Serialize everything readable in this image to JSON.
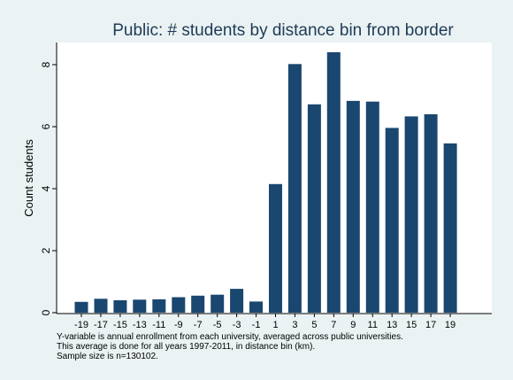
{
  "chart_data": {
    "type": "bar",
    "title": "Public: # students by distance bin from border",
    "xlabel": "",
    "ylabel": "Count students",
    "ylim": [
      0,
      8.7
    ],
    "yticks": [
      0,
      2,
      4,
      6,
      8
    ],
    "grid": false,
    "legend": "none",
    "categories": [
      "-19",
      "-17",
      "-15",
      "-13",
      "-11",
      "-9",
      "-7",
      "-5",
      "-3",
      "-1",
      "1",
      "3",
      "5",
      "7",
      "9",
      "11",
      "13",
      "15",
      "17",
      "19"
    ],
    "values": [
      0.35,
      0.45,
      0.4,
      0.42,
      0.43,
      0.5,
      0.55,
      0.58,
      0.77,
      0.36,
      4.15,
      8.02,
      6.72,
      8.4,
      6.83,
      6.81,
      5.96,
      6.33,
      6.4,
      5.46
    ],
    "bar_color": "#1a476f",
    "notes": [
      "Y-variable is annual enrollment from each university, averaged across public universities.",
      "This average is done for all years 1997-2011, in distance bin (km).",
      "Sample size is  n=130102."
    ]
  },
  "colors": {
    "background": "#eaf2f3",
    "plot_background": "#ffffff",
    "title": "#1e3b56"
  }
}
